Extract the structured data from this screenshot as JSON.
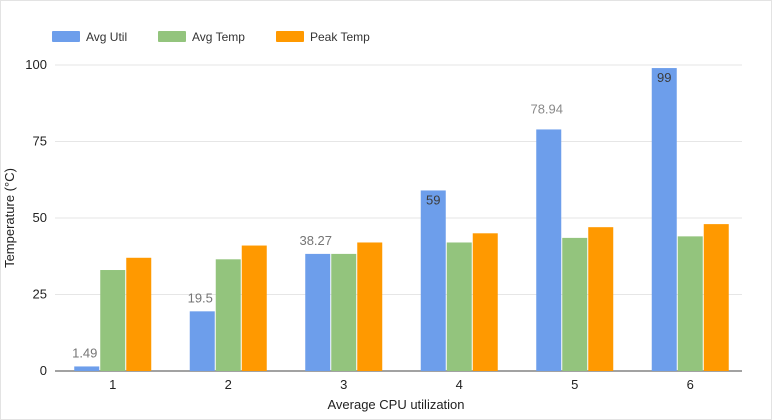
{
  "chart_data": {
    "type": "bar",
    "categories": [
      "1",
      "2",
      "3",
      "4",
      "5",
      "6"
    ],
    "series": [
      {
        "name": "Avg Util",
        "color": "#6d9eeb",
        "values": [
          1.49,
          19.5,
          38.27,
          59,
          78.94,
          99
        ]
      },
      {
        "name": "Avg Temp",
        "color": "#93c47d",
        "values": [
          33,
          36.5,
          38.27,
          42,
          43.5,
          44
        ]
      },
      {
        "name": "Peak Temp",
        "color": "#ff9900",
        "values": [
          37,
          41,
          42,
          45,
          47,
          48
        ]
      }
    ],
    "data_labels": {
      "series": "Avg Util",
      "labels": [
        "1.49",
        "19.5",
        "38.27",
        "59",
        "78.94",
        "99"
      ]
    },
    "xlabel": "Average CPU utilization",
    "ylabel": "Temperature (°C)",
    "ylim": [
      0,
      100
    ],
    "yticks": [
      "0",
      "25",
      "50",
      "75",
      "100"
    ],
    "grid": true,
    "legend_position": "top-left"
  }
}
